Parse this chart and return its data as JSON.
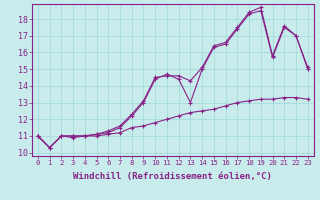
{
  "background_color": "#c8ecec",
  "line_color": "#882288",
  "grid_color": "#aadddd",
  "xlabel": "Windchill (Refroidissement éolien,°C)",
  "xlabel_fontsize": 6.5,
  "xtick_fontsize": 5.2,
  "ytick_fontsize": 6.0,
  "xlim": [
    -0.5,
    23.5
  ],
  "ylim": [
    9.8,
    18.9
  ],
  "yticks": [
    10,
    11,
    12,
    13,
    14,
    15,
    16,
    17,
    18
  ],
  "xticks": [
    0,
    1,
    2,
    3,
    4,
    5,
    6,
    7,
    8,
    9,
    10,
    11,
    12,
    13,
    14,
    15,
    16,
    17,
    18,
    19,
    20,
    21,
    22,
    23
  ],
  "line1_x": [
    0,
    1,
    2,
    3,
    4,
    5,
    6,
    7,
    8,
    9,
    10,
    11,
    12,
    13,
    14,
    15,
    16,
    17,
    18,
    19,
    20,
    21,
    22,
    23
  ],
  "line1_y": [
    11.0,
    10.3,
    11.0,
    10.9,
    11.0,
    11.0,
    11.1,
    11.2,
    11.5,
    11.6,
    11.8,
    12.0,
    12.2,
    12.4,
    12.5,
    12.6,
    12.8,
    13.0,
    13.1,
    13.2,
    13.2,
    13.3,
    13.3,
    13.2
  ],
  "line2_x": [
    0,
    1,
    2,
    3,
    4,
    5,
    6,
    7,
    8,
    9,
    10,
    11,
    12,
    13,
    14,
    15,
    16,
    17,
    18,
    19,
    20,
    21,
    22,
    23
  ],
  "line2_y": [
    11.0,
    10.3,
    11.0,
    11.0,
    11.0,
    11.1,
    11.3,
    11.6,
    12.3,
    13.1,
    14.5,
    14.6,
    14.6,
    14.3,
    15.1,
    16.4,
    16.6,
    17.5,
    18.4,
    18.7,
    15.8,
    17.6,
    17.0,
    15.1
  ],
  "line3_x": [
    0,
    1,
    2,
    3,
    4,
    5,
    6,
    7,
    8,
    9,
    10,
    11,
    12,
    13,
    14,
    15,
    16,
    17,
    18,
    19,
    20,
    21,
    22,
    23
  ],
  "line3_y": [
    11.0,
    10.3,
    11.0,
    11.0,
    11.0,
    11.1,
    11.2,
    11.5,
    12.2,
    13.0,
    14.4,
    14.7,
    14.4,
    13.0,
    15.0,
    16.3,
    16.5,
    17.4,
    18.3,
    18.5,
    15.7,
    17.5,
    17.0,
    15.0
  ]
}
